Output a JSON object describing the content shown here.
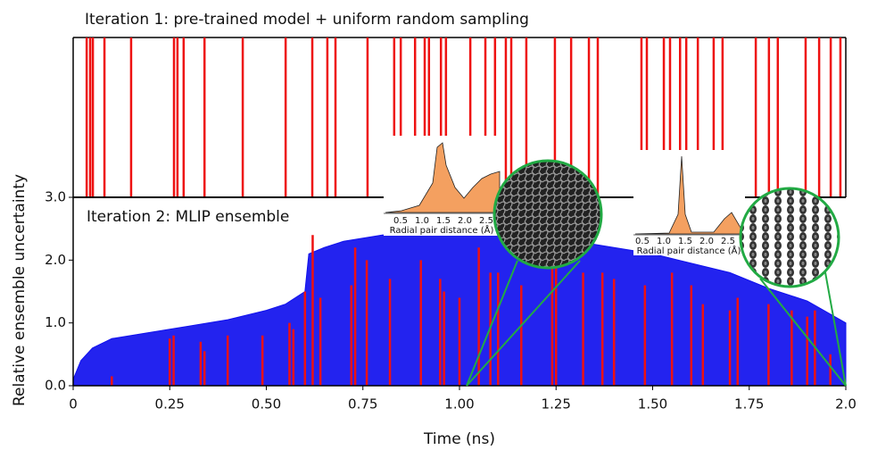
{
  "chart_data": {
    "type": "area",
    "top_title": "Iteration 1: pre-trained model + uniform random sampling",
    "title": "Iteration 2: MLIP ensemble",
    "y_label": "Relative ensemble uncertainty",
    "x_label": "Time (ns)",
    "xlim": [
      0,
      2
    ],
    "ylim": [
      0,
      3
    ],
    "xticks": [
      0,
      0.25,
      {
        "value": 0.5,
        "label": "0.50"
      },
      0.75,
      {
        "value": 1,
        "label": "1.00"
      },
      1.25,
      {
        "value": 1.5,
        "label": "1.50"
      },
      1.75,
      {
        "value": 2,
        "label": "2.0"
      }
    ],
    "yticks": [
      {
        "value": 0,
        "label": "0.0"
      },
      {
        "value": 1,
        "label": "1.0"
      },
      {
        "value": 2,
        "label": "2.0"
      },
      {
        "value": 3,
        "label": "3.0"
      }
    ],
    "x": [
      0,
      0.02,
      0.05,
      0.1,
      0.2,
      0.3,
      0.4,
      0.5,
      0.55,
      0.6,
      0.61,
      0.65,
      0.7,
      0.8,
      0.9,
      1.0,
      1.1,
      1.2,
      1.3,
      1.4,
      1.5,
      1.6,
      1.7,
      1.8,
      1.9,
      2.0
    ],
    "values": [
      0.1,
      0.4,
      0.6,
      0.75,
      0.85,
      0.95,
      1.05,
      1.2,
      1.3,
      1.5,
      2.1,
      2.2,
      2.3,
      2.4,
      2.45,
      2.45,
      2.4,
      2.35,
      2.3,
      2.2,
      2.1,
      1.95,
      1.8,
      1.55,
      1.35,
      1.0
    ],
    "color": "#1010ee",
    "samples": {
      "color": "#ee1111",
      "x": [
        0.1,
        0.25,
        0.26,
        0.33,
        0.34,
        0.4,
        0.49,
        0.56,
        0.57,
        0.6,
        0.62,
        0.64,
        0.72,
        0.73,
        0.76,
        0.82,
        0.9,
        0.95,
        0.96,
        1.0,
        1.05,
        1.08,
        1.1,
        1.16,
        1.24,
        1.25,
        1.32,
        1.37,
        1.4,
        1.48,
        1.55,
        1.6,
        1.63,
        1.7,
        1.72,
        1.8,
        1.86,
        1.9,
        1.92,
        1.96
      ],
      "values": [
        0.15,
        0.75,
        0.8,
        0.7,
        0.55,
        0.8,
        0.8,
        1.0,
        0.9,
        1.5,
        2.4,
        1.4,
        1.6,
        2.2,
        2.0,
        1.7,
        2.0,
        1.7,
        1.5,
        1.4,
        2.2,
        1.8,
        1.8,
        1.6,
        2.3,
        2.5,
        1.8,
        1.8,
        1.7,
        1.6,
        1.8,
        1.6,
        1.3,
        1.2,
        1.4,
        1.3,
        1.2,
        1.1,
        1.2,
        0.5
      ]
    },
    "top_samples_x": [
      0.035,
      0.044,
      0.051,
      0.081,
      0.15,
      0.261,
      0.27,
      0.286,
      0.34,
      0.439,
      0.55,
      0.619,
      0.658,
      0.679,
      0.762,
      0.831,
      0.848,
      0.885,
      0.91,
      0.921,
      0.952,
      0.965,
      1.028,
      1.067,
      1.092,
      1.12,
      1.134,
      1.173,
      1.247,
      1.289,
      1.335,
      1.358,
      1.471,
      1.485,
      1.529,
      1.545,
      1.571,
      1.587,
      1.617,
      1.658,
      1.681,
      1.767,
      1.801,
      1.824,
      1.896,
      1.931,
      1.961,
      1.986
    ],
    "insets": [
      {
        "ticks": [
          "0.5",
          "1.0",
          "1.5",
          "2.0",
          "2.5"
        ],
        "label": "Radial pair distance (Å)"
      },
      {
        "ticks": [
          "0.5",
          "1.0",
          "1.5",
          "2.0",
          "2.5"
        ],
        "label": "Radial pair distance (Å)"
      }
    ]
  }
}
